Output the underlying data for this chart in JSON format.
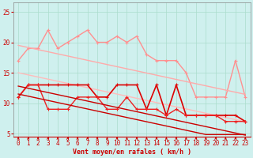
{
  "background_color": "#cff0ee",
  "grid_color": "#aaddcc",
  "xlabel": "Vent moyen/en rafales ( km/h )",
  "x": [
    0,
    1,
    2,
    3,
    4,
    5,
    6,
    7,
    8,
    9,
    10,
    11,
    12,
    13,
    14,
    15,
    16,
    17,
    18,
    19,
    20,
    21,
    22,
    23
  ],
  "ylim": [
    4.5,
    26.5
  ],
  "xlim": [
    -0.5,
    23.5
  ],
  "yticks": [
    5,
    10,
    15,
    20,
    25
  ],
  "lines": [
    {
      "label": "pink_jagged",
      "color": "#ff9090",
      "lw": 1.0,
      "marker": "+",
      "markersize": 3,
      "y": [
        17,
        19,
        19,
        22,
        19,
        20,
        21,
        22,
        20,
        20,
        21,
        20,
        21,
        18,
        17,
        17,
        17,
        15,
        11,
        11,
        11,
        11,
        17,
        11
      ]
    },
    {
      "label": "pink_reg_upper",
      "color": "#ffaaaa",
      "lw": 1.0,
      "marker": null,
      "y": [
        19.5,
        19.15,
        18.8,
        18.45,
        18.1,
        17.75,
        17.4,
        17.05,
        16.7,
        16.35,
        16.0,
        15.65,
        15.3,
        14.95,
        14.6,
        14.25,
        13.9,
        13.55,
        13.2,
        12.85,
        12.5,
        12.15,
        11.8,
        11.45
      ]
    },
    {
      "label": "pink_reg_lower",
      "color": "#ffbbbb",
      "lw": 1.0,
      "marker": null,
      "y": [
        15.0,
        14.65,
        14.3,
        13.95,
        13.6,
        13.25,
        12.9,
        12.55,
        12.2,
        11.85,
        11.5,
        11.15,
        10.8,
        10.45,
        10.1,
        9.75,
        9.4,
        9.05,
        8.7,
        8.35,
        8.0,
        7.65,
        7.3,
        6.95
      ]
    },
    {
      "label": "red_jagged_upper",
      "color": "#dd0000",
      "lw": 1.2,
      "marker": "+",
      "markersize": 3,
      "y": [
        11,
        13,
        13,
        13,
        13,
        13,
        13,
        13,
        11,
        11,
        13,
        13,
        13,
        9,
        13,
        8,
        13,
        8,
        8,
        8,
        8,
        8,
        8,
        7
      ]
    },
    {
      "label": "red_jagged_lower",
      "color": "#ee2222",
      "lw": 1.0,
      "marker": "+",
      "markersize": 3,
      "y": [
        11,
        13,
        13,
        9,
        9,
        9,
        11,
        11,
        11,
        9,
        9,
        11,
        9,
        9,
        9,
        8,
        9,
        8,
        8,
        8,
        8,
        7,
        7,
        7
      ]
    },
    {
      "label": "red_reg_upper",
      "color": "#cc0000",
      "lw": 1.0,
      "marker": null,
      "y": [
        12.8,
        12.45,
        12.1,
        11.75,
        11.4,
        11.05,
        10.7,
        10.35,
        10.0,
        9.65,
        9.3,
        8.95,
        8.6,
        8.25,
        7.9,
        7.55,
        7.2,
        6.85,
        6.5,
        6.15,
        5.8,
        5.45,
        5.1,
        4.75
      ]
    },
    {
      "label": "red_reg_lower",
      "color": "#cc0000",
      "lw": 1.0,
      "marker": null,
      "y": [
        11.5,
        11.15,
        10.8,
        10.45,
        10.1,
        9.75,
        9.4,
        9.05,
        8.7,
        8.35,
        8.0,
        7.65,
        7.3,
        6.95,
        6.6,
        6.25,
        5.9,
        5.55,
        5.2,
        4.85,
        4.85,
        4.85,
        4.85,
        4.85
      ]
    }
  ],
  "axis_fontsize": 6,
  "tick_fontsize": 5.5
}
